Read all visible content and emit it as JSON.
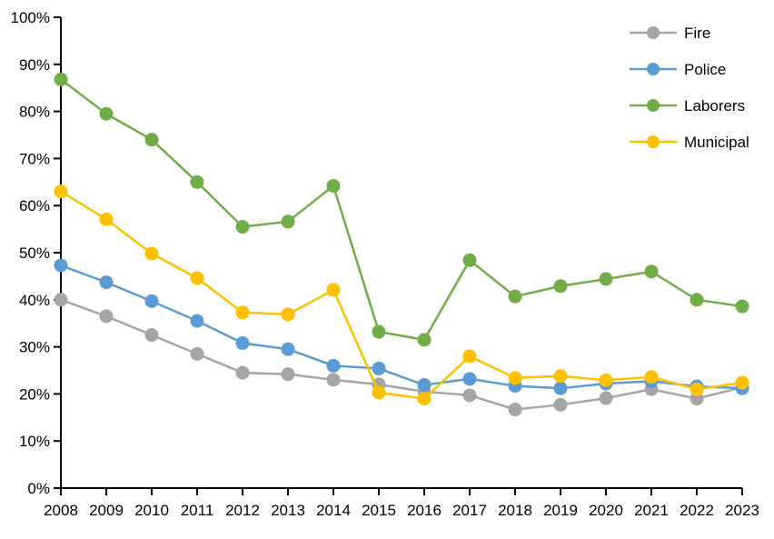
{
  "chart_data": {
    "type": "line",
    "title": "",
    "xlabel": "",
    "ylabel": "",
    "grid": false,
    "legend_position": "top-right",
    "x_categories": [
      "2008",
      "2009",
      "2010",
      "2011",
      "2012",
      "2013",
      "2014",
      "2015",
      "2016",
      "2017",
      "2018",
      "2019",
      "2020",
      "2021",
      "2022",
      "2023"
    ],
    "y_axis": {
      "min": 0,
      "max": 100,
      "step": 10,
      "tick_suffix": "%"
    },
    "y_tick_labels": [
      "0%",
      "10%",
      "20%",
      "30%",
      "40%",
      "50%",
      "60%",
      "70%",
      "80%",
      "90%",
      "100%"
    ],
    "series": [
      {
        "name": "Fire",
        "color": "#A5A5A5",
        "values": [
          40.0,
          36.5,
          32.5,
          28.5,
          24.5,
          24.2,
          23.0,
          22.0,
          20.5,
          19.7,
          16.7,
          17.7,
          19.1,
          21.0,
          19.0,
          21.4
        ]
      },
      {
        "name": "Police",
        "color": "#5B9BD5",
        "values": [
          47.3,
          43.7,
          39.7,
          35.5,
          30.8,
          29.5,
          26.0,
          25.4,
          21.9,
          23.2,
          21.7,
          21.2,
          22.2,
          22.7,
          21.6,
          21.2
        ]
      },
      {
        "name": "Laborers",
        "color": "#70AD47",
        "values": [
          86.8,
          79.5,
          74.0,
          65.0,
          55.5,
          56.6,
          64.2,
          33.2,
          31.5,
          48.4,
          40.7,
          42.9,
          44.4,
          46.0,
          40.0,
          38.6
        ]
      },
      {
        "name": "Municipal",
        "color": "#FFC000",
        "values": [
          63.0,
          57.1,
          49.8,
          44.6,
          37.3,
          36.9,
          42.1,
          20.3,
          19.0,
          28.0,
          23.4,
          23.8,
          22.9,
          23.6,
          21.0,
          22.4
        ]
      }
    ],
    "legend": [
      "Fire",
      "Police",
      "Laborers",
      "Municipal"
    ],
    "axis_color": "#000000"
  }
}
